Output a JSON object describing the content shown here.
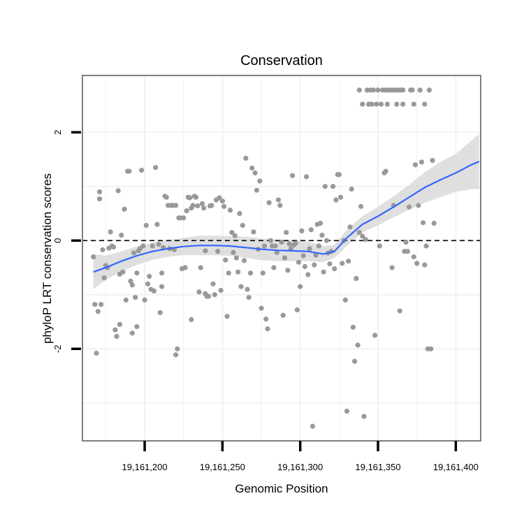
{
  "chart_data": {
    "type": "scatter",
    "title": "Conservation",
    "xlabel": "Genomic Position",
    "ylabel": "phyloP LRT conservation scores",
    "xlim": [
      19161160,
      19161416
    ],
    "ylim": [
      -3.7,
      3.05
    ],
    "x_ticks": [
      {
        "value": 19161200,
        "label": "19,161,200"
      },
      {
        "value": 19161250,
        "label": "19,161,250"
      },
      {
        "value": 19161300,
        "label": "19,161,300"
      },
      {
        "value": 19161350,
        "label": "19,161,350"
      },
      {
        "value": 19161400,
        "label": "19,161,400"
      }
    ],
    "y_ticks": [
      {
        "value": -2,
        "label": "-2"
      },
      {
        "value": 0,
        "label": "0"
      },
      {
        "value": 2,
        "label": "2"
      }
    ],
    "minor_y_gridlines": [
      -3,
      -1,
      1
    ],
    "grid": true,
    "reference_line": {
      "y": 0,
      "style": "dashed"
    },
    "colors": {
      "points": "#999999",
      "smooth": "#3366ff",
      "ribbon": "#d9d9d9",
      "border": "#7f7f7f",
      "grid": "#f2f2f2"
    },
    "series": [
      {
        "name": "phyloP scores",
        "points": [
          [
            19161167,
            -0.3
          ],
          [
            19161168,
            -1.18
          ],
          [
            19161169,
            -2.08
          ],
          [
            19161170,
            -1.31
          ],
          [
            19161171,
            0.9
          ],
          [
            19161171,
            0.77
          ],
          [
            19161172,
            -1.18
          ],
          [
            19161173,
            -0.17
          ],
          [
            19161174,
            -0.69
          ],
          [
            19161175,
            -0.46
          ],
          [
            19161176,
            -0.5
          ],
          [
            19161177,
            -0.14
          ],
          [
            19161178,
            0.16
          ],
          [
            19161179,
            -0.1
          ],
          [
            19161180,
            -0.12
          ],
          [
            19161181,
            -1.65
          ],
          [
            19161182,
            -1.77
          ],
          [
            19161183,
            0.92
          ],
          [
            19161184,
            -0.62
          ],
          [
            19161184,
            -1.55
          ],
          [
            19161185,
            0.1
          ],
          [
            19161186,
            -0.58
          ],
          [
            19161187,
            0.58
          ],
          [
            19161188,
            -1.1
          ],
          [
            19161189,
            1.28
          ],
          [
            19161190,
            1.28
          ],
          [
            19161191,
            -0.75
          ],
          [
            19161192,
            -1.71
          ],
          [
            19161192,
            -0.82
          ],
          [
            19161193,
            -0.23
          ],
          [
            19161194,
            -1.05
          ],
          [
            19161195,
            -0.6
          ],
          [
            19161195,
            -1.59
          ],
          [
            19161196,
            -0.19
          ],
          [
            19161197,
            -0.15
          ],
          [
            19161198,
            1.3
          ],
          [
            19161199,
            -0.1
          ],
          [
            19161200,
            -1.1
          ],
          [
            19161201,
            0.28
          ],
          [
            19161202,
            -0.8
          ],
          [
            19161203,
            -0.66
          ],
          [
            19161204,
            -0.9
          ],
          [
            19161205,
            -0.1
          ],
          [
            19161206,
            -0.93
          ],
          [
            19161207,
            1.35
          ],
          [
            19161208,
            0.3
          ],
          [
            19161209,
            -0.07
          ],
          [
            19161210,
            -1.33
          ],
          [
            19161211,
            -0.6
          ],
          [
            19161211,
            -0.85
          ],
          [
            19161212,
            -0.13
          ],
          [
            19161213,
            0.82
          ],
          [
            19161214,
            0.8
          ],
          [
            19161215,
            0.65
          ],
          [
            19161216,
            -0.15
          ],
          [
            19161217,
            0.65
          ],
          [
            19161218,
            0.65
          ],
          [
            19161219,
            -0.17
          ],
          [
            19161220,
            0.65
          ],
          [
            19161220,
            -2.11
          ],
          [
            19161221,
            -2.0
          ],
          [
            19161222,
            0.42
          ],
          [
            19161223,
            0.42
          ],
          [
            19161224,
            -0.52
          ],
          [
            19161225,
            0.42
          ],
          [
            19161226,
            -0.5
          ],
          [
            19161227,
            0.55
          ],
          [
            19161228,
            0.8
          ],
          [
            19161229,
            0.79
          ],
          [
            19161230,
            -1.46
          ],
          [
            19161230,
            0.6
          ],
          [
            19161231,
            0.65
          ],
          [
            19161232,
            0.82
          ],
          [
            19161233,
            0.8
          ],
          [
            19161234,
            0.64
          ],
          [
            19161235,
            -0.95
          ],
          [
            19161236,
            -0.5
          ],
          [
            19161237,
            0.68
          ],
          [
            19161238,
            0.6
          ],
          [
            19161239,
            -0.19
          ],
          [
            19161239,
            -0.98
          ],
          [
            19161240,
            -1.03
          ],
          [
            19161241,
            -1.03
          ],
          [
            19161242,
            0.64
          ],
          [
            19161243,
            0.65
          ],
          [
            19161244,
            -0.8
          ],
          [
            19161245,
            -1.0
          ],
          [
            19161246,
            0.75
          ],
          [
            19161247,
            -0.2
          ],
          [
            19161248,
            0.79
          ],
          [
            19161249,
            -0.92
          ],
          [
            19161250,
            0.73
          ],
          [
            19161251,
            0.63
          ],
          [
            19161252,
            -0.36
          ],
          [
            19161253,
            -1.4
          ],
          [
            19161254,
            -0.6
          ],
          [
            19161255,
            0.56
          ],
          [
            19161256,
            0.15
          ],
          [
            19161257,
            -0.22
          ],
          [
            19161258,
            0.09
          ],
          [
            19161259,
            -0.32
          ],
          [
            19161260,
            -0.58
          ],
          [
            19161261,
            0.5
          ],
          [
            19161262,
            -0.85
          ],
          [
            19161263,
            0.28
          ],
          [
            19161264,
            -0.37
          ],
          [
            19161265,
            1.52
          ],
          [
            19161266,
            -0.9
          ],
          [
            19161267,
            -1.05
          ],
          [
            19161268,
            -0.6
          ],
          [
            19161269,
            1.34
          ],
          [
            19161270,
            0.16
          ],
          [
            19161271,
            1.25
          ],
          [
            19161272,
            0.93
          ],
          [
            19161273,
            -0.16
          ],
          [
            19161274,
            1.1
          ],
          [
            19161275,
            -1.25
          ],
          [
            19161276,
            -0.6
          ],
          [
            19161277,
            -0.1
          ],
          [
            19161278,
            -1.45
          ],
          [
            19161279,
            -1.63
          ],
          [
            19161280,
            0.7
          ],
          [
            19161281,
            0.0
          ],
          [
            19161282,
            -0.1
          ],
          [
            19161283,
            -0.5
          ],
          [
            19161284,
            -0.1
          ],
          [
            19161285,
            -0.22
          ],
          [
            19161286,
            0.75
          ],
          [
            19161287,
            0.65
          ],
          [
            19161288,
            -0.03
          ],
          [
            19161289,
            -1.38
          ],
          [
            19161290,
            -0.32
          ],
          [
            19161291,
            0.15
          ],
          [
            19161292,
            -0.55
          ],
          [
            19161293,
            -0.06
          ],
          [
            19161294,
            -0.15
          ],
          [
            19161295,
            1.2
          ],
          [
            19161296,
            -0.08
          ],
          [
            19161297,
            -0.05
          ],
          [
            19161298,
            -1.28
          ],
          [
            19161299,
            -0.4
          ],
          [
            19161300,
            -0.85
          ],
          [
            19161301,
            0.18
          ],
          [
            19161302,
            -0.28
          ],
          [
            19161303,
            -0.48
          ],
          [
            19161304,
            1.18
          ],
          [
            19161305,
            -0.63
          ],
          [
            19161306,
            -0.15
          ],
          [
            19161307,
            0.2
          ],
          [
            19161308,
            -3.43
          ],
          [
            19161309,
            -0.45
          ],
          [
            19161310,
            -0.27
          ],
          [
            19161311,
            0.3
          ],
          [
            19161312,
            -0.1
          ],
          [
            19161313,
            0.32
          ],
          [
            19161314,
            0.1
          ],
          [
            19161315,
            -0.58
          ],
          [
            19161316,
            1.0
          ],
          [
            19161317,
            0.0
          ],
          [
            19161318,
            -0.23
          ],
          [
            19161319,
            -0.43
          ],
          [
            19161320,
            -0.2
          ],
          [
            19161321,
            1.0
          ],
          [
            19161322,
            -0.52
          ],
          [
            19161323,
            0.75
          ],
          [
            19161324,
            1.22
          ],
          [
            19161325,
            1.22
          ],
          [
            19161326,
            0.8
          ],
          [
            19161327,
            -0.42
          ],
          [
            19161328,
            0.0
          ],
          [
            19161329,
            -1.1
          ],
          [
            19161330,
            -3.15
          ],
          [
            19161331,
            -0.38
          ],
          [
            19161332,
            0.25
          ],
          [
            19161333,
            0.95
          ],
          [
            19161334,
            -1.6
          ],
          [
            19161335,
            -2.23
          ],
          [
            19161336,
            -0.7
          ],
          [
            19161337,
            -1.93
          ],
          [
            19161338,
            0.15
          ],
          [
            19161339,
            0.63
          ],
          [
            19161340,
            0.08
          ],
          [
            19161341,
            -3.25
          ],
          [
            19161342,
            0.02
          ],
          [
            19161343,
            2.78
          ],
          [
            19161344,
            2.52
          ],
          [
            19161345,
            2.78
          ],
          [
            19161346,
            2.52
          ],
          [
            19161347,
            2.78
          ],
          [
            19161348,
            -1.75
          ],
          [
            19161349,
            2.52
          ],
          [
            19161350,
            2.78
          ],
          [
            19161351,
            -0.1
          ],
          [
            19161352,
            2.52
          ],
          [
            19161353,
            2.78
          ],
          [
            19161354,
            1.25
          ],
          [
            19161355,
            1.28
          ],
          [
            19161356,
            2.52
          ],
          [
            19161357,
            2.78
          ],
          [
            19161358,
            2.78
          ],
          [
            19161359,
            -0.5
          ],
          [
            19161360,
            0.65
          ],
          [
            19161361,
            2.78
          ],
          [
            19161362,
            2.52
          ],
          [
            19161363,
            2.78
          ],
          [
            19161364,
            -1.3
          ],
          [
            19161365,
            2.78
          ],
          [
            19161366,
            2.52
          ],
          [
            19161367,
            -0.2
          ],
          [
            19161368,
            -0.03
          ],
          [
            19161369,
            -0.2
          ],
          [
            19161370,
            0.62
          ],
          [
            19161371,
            2.78
          ],
          [
            19161372,
            2.78
          ],
          [
            19161373,
            -0.3
          ],
          [
            19161374,
            1.4
          ],
          [
            19161375,
            -0.42
          ],
          [
            19161376,
            0.65
          ],
          [
            19161377,
            2.78
          ],
          [
            19161378,
            1.45
          ],
          [
            19161379,
            0.33
          ],
          [
            19161380,
            -0.45
          ],
          [
            19161381,
            -0.1
          ],
          [
            19161382,
            -2.0
          ],
          [
            19161383,
            2.78
          ],
          [
            19161384,
            -2.0
          ],
          [
            19161385,
            1.48
          ],
          [
            19161386,
            0.32
          ],
          [
            19161355,
            2.78
          ],
          [
            19161360,
            2.78
          ],
          [
            19161366,
            2.78
          ],
          [
            19161338,
            2.78
          ],
          [
            19161340,
            2.52
          ],
          [
            19161373,
            2.52
          ],
          [
            19161380,
            2.52
          ]
        ]
      }
    ],
    "smooth": {
      "name": "loess fit",
      "x": [
        19161167,
        19161175,
        19161185,
        19161195,
        19161205,
        19161215,
        19161225,
        19161235,
        19161245,
        19161255,
        19161265,
        19161275,
        19161285,
        19161295,
        19161305,
        19161315,
        19161322,
        19161330,
        19161340,
        19161350,
        19161360,
        19161370,
        19161380,
        19161390,
        19161400,
        19161410,
        19161415
      ],
      "y": [
        -0.58,
        -0.5,
        -0.38,
        -0.28,
        -0.2,
        -0.15,
        -0.11,
        -0.09,
        -0.09,
        -0.1,
        -0.13,
        -0.16,
        -0.18,
        -0.19,
        -0.2,
        -0.25,
        -0.2,
        0.05,
        0.3,
        0.45,
        0.62,
        0.8,
        0.98,
        1.12,
        1.25,
        1.4,
        1.46
      ],
      "ribbon_lower": [
        -0.9,
        -0.72,
        -0.57,
        -0.45,
        -0.36,
        -0.3,
        -0.27,
        -0.27,
        -0.27,
        -0.28,
        -0.32,
        -0.36,
        -0.38,
        -0.38,
        -0.38,
        -0.4,
        -0.32,
        -0.1,
        0.15,
        0.28,
        0.43,
        0.57,
        0.7,
        0.8,
        0.9,
        0.95,
        0.95
      ],
      "ribbon_upper": [
        -0.25,
        -0.28,
        -0.2,
        -0.11,
        -0.04,
        0.01,
        0.05,
        0.09,
        0.09,
        0.08,
        0.07,
        0.04,
        0.02,
        0.0,
        -0.02,
        -0.1,
        -0.08,
        0.2,
        0.45,
        0.62,
        0.82,
        1.03,
        1.26,
        1.45,
        1.6,
        1.85,
        1.97
      ]
    }
  }
}
